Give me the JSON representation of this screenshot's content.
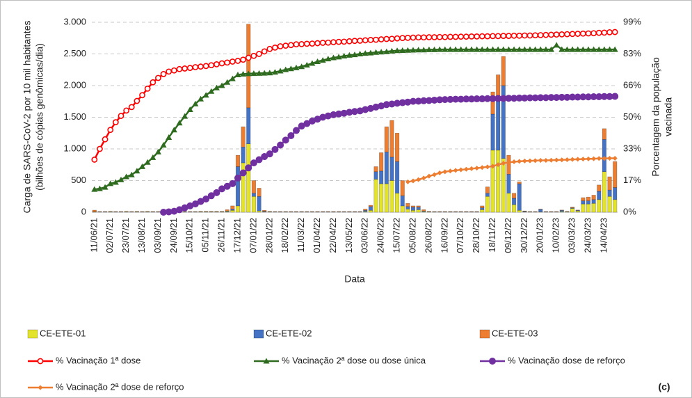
{
  "chart_data": {
    "type": "bar",
    "stacked": true,
    "grid": true,
    "legend": "bottom",
    "y_label": [
      "Carga de SARS-CoV-2 por 10 mil habitantes",
      "(bilhões de cópias genômicas/dia)"
    ],
    "y2_label": [
      "Porcentagem da população",
      "vacinada"
    ],
    "x_label": "Data",
    "annotation": "(c)",
    "ylim": [
      0,
      3000
    ],
    "yticks": [
      0,
      500,
      {
        "value": 1000,
        "label": "1.000"
      },
      {
        "value": 1500,
        "label": "1.500"
      },
      {
        "value": 2000,
        "label": "2.000"
      },
      {
        "value": 2500,
        "label": "2.500"
      },
      {
        "value": 3000,
        "label": "3.000"
      }
    ],
    "y2lim": [
      0,
      99
    ],
    "y2ticks": [
      {
        "value": 0,
        "label": "0%"
      },
      {
        "value": 16.5,
        "label": "17%"
      },
      {
        "value": 33,
        "label": "33%"
      },
      {
        "value": 49.5,
        "label": "50%"
      },
      {
        "value": 66,
        "label": "66%"
      },
      {
        "value": 82.5,
        "label": "83%"
      },
      {
        "value": 99,
        "label": "99%"
      }
    ],
    "categories": [
      "11/06/21",
      null,
      null,
      "02/07/21",
      null,
      null,
      "23/07/21",
      null,
      null,
      "13/08/21",
      null,
      null,
      "03/09/21",
      null,
      null,
      "24/09/21",
      null,
      null,
      "15/10/21",
      null,
      null,
      "05/11/21",
      null,
      null,
      "26/11/21",
      null,
      null,
      "17/12/21",
      null,
      null,
      "07/01/22",
      null,
      null,
      "28/01/22",
      null,
      null,
      "18/02/22",
      null,
      null,
      "11/03/22",
      null,
      null,
      "01/04/22",
      null,
      null,
      "22/04/22",
      null,
      null,
      "13/05/22",
      null,
      null,
      "03/06/22",
      null,
      null,
      "24/06/22",
      null,
      null,
      "15/07/22",
      null,
      null,
      "05/08/22",
      null,
      null,
      "26/08/22",
      null,
      null,
      "16/09/22",
      null,
      null,
      "07/10/22",
      null,
      null,
      "28/10/22",
      null,
      null,
      "18/11/22",
      null,
      null,
      "09/12/22",
      null,
      null,
      "30/12/22",
      null,
      null,
      "20/01/23",
      null,
      null,
      "10/02/23",
      null,
      null,
      "03/03/23",
      null,
      null,
      "24/03/23",
      null,
      null,
      "14/04/23",
      null,
      null
    ],
    "series": [
      {
        "name": "CE-ETE-01",
        "type": "bar",
        "color": "#e3e32b",
        "values": [
          5,
          3,
          3,
          5,
          3,
          3,
          5,
          3,
          5,
          3,
          5,
          3,
          3,
          3,
          3,
          3,
          3,
          3,
          3,
          3,
          5,
          5,
          5,
          5,
          5,
          10,
          30,
          100,
          780,
          1080,
          250,
          20,
          5,
          5,
          3,
          3,
          3,
          3,
          3,
          3,
          3,
          3,
          3,
          3,
          3,
          3,
          3,
          3,
          3,
          3,
          3,
          10,
          30,
          520,
          450,
          450,
          500,
          300,
          100,
          50,
          30,
          40,
          10,
          5,
          3,
          3,
          3,
          3,
          3,
          3,
          3,
          3,
          3,
          40,
          250,
          980,
          980,
          850,
          300,
          120,
          30,
          5,
          3,
          3,
          5,
          3,
          3,
          3,
          10,
          5,
          60,
          20,
          130,
          130,
          140,
          200,
          640,
          250,
          200
        ]
      },
      {
        "name": "CE-ETE-02",
        "type": "bar",
        "color": "#4472c4",
        "values": [
          3,
          3,
          3,
          3,
          3,
          3,
          3,
          3,
          3,
          3,
          3,
          3,
          3,
          3,
          3,
          3,
          3,
          3,
          3,
          3,
          3,
          3,
          3,
          3,
          3,
          10,
          20,
          620,
          250,
          570,
          50,
          230,
          10,
          3,
          3,
          3,
          3,
          3,
          3,
          3,
          3,
          3,
          3,
          3,
          3,
          3,
          3,
          3,
          3,
          3,
          3,
          20,
          60,
          120,
          200,
          500,
          370,
          500,
          160,
          40,
          50,
          40,
          10,
          3,
          3,
          3,
          3,
          3,
          3,
          3,
          3,
          3,
          3,
          30,
          50,
          570,
          780,
          1150,
          300,
          100,
          420,
          10,
          3,
          3,
          40,
          3,
          3,
          3,
          20,
          3,
          10,
          10,
          50,
          50,
          60,
          130,
          510,
          100,
          190
        ]
      },
      {
        "name": "CE-ETE-03",
        "type": "bar",
        "color": "#ed7d31",
        "values": [
          25,
          5,
          5,
          5,
          5,
          5,
          5,
          5,
          5,
          5,
          5,
          5,
          5,
          5,
          5,
          5,
          5,
          5,
          5,
          5,
          5,
          5,
          5,
          5,
          5,
          20,
          50,
          180,
          320,
          1320,
          200,
          130,
          15,
          5,
          5,
          5,
          5,
          5,
          5,
          5,
          5,
          5,
          5,
          5,
          5,
          5,
          5,
          5,
          5,
          5,
          5,
          20,
          20,
          80,
          290,
          400,
          580,
          450,
          240,
          50,
          20,
          20,
          20,
          5,
          5,
          5,
          5,
          5,
          5,
          5,
          5,
          5,
          5,
          30,
          100,
          350,
          410,
          460,
          300,
          80,
          30,
          5,
          5,
          5,
          5,
          5,
          5,
          5,
          5,
          5,
          10,
          5,
          50,
          60,
          70,
          100,
          170,
          210,
          410
        ]
      },
      {
        "name": "% Vacinação 1ª dose",
        "type": "line",
        "axis": "y2",
        "color": "#ff0000",
        "marker": "circle",
        "marker_fill": "#ffffff",
        "values": [
          27.4,
          33,
          38,
          42.9,
          46.9,
          50.2,
          53,
          54.8,
          58,
          61,
          64.4,
          67.7,
          70,
          72,
          73.3,
          73.9,
          74.6,
          74.9,
          75.2,
          75.6,
          75.9,
          76.2,
          76.6,
          77.1,
          77.6,
          78,
          78.5,
          78.9,
          79.5,
          80.5,
          81.5,
          82.5,
          83.8,
          85.1,
          85.8,
          86.5,
          86.8,
          87.1,
          87.5,
          87.6,
          87.8,
          87.9,
          88.1,
          88.3,
          88.4,
          88.6,
          88.8,
          88.9,
          89.1,
          89.3,
          89.4,
          89.6,
          89.8,
          89.9,
          90.1,
          90.3,
          90.4,
          90.6,
          90.8,
          90.9,
          91,
          91.1,
          91.1,
          91.2,
          91.2,
          91.3,
          91.3,
          91.4,
          91.4,
          91.5,
          91.5,
          91.6,
          91.6,
          91.7,
          91.7,
          91.8,
          91.8,
          91.9,
          91.9,
          92,
          92,
          92.1,
          92.1,
          92.2,
          92.3,
          92.4,
          92.5,
          92.6,
          92.7,
          92.8,
          92.9,
          93,
          93.1,
          93.2,
          93.3,
          93.5,
          93.6,
          93.8,
          93.9
        ]
      },
      {
        "name": "% Vacinação 2ª dose ou dose única",
        "type": "line",
        "axis": "y2",
        "color": "#2e6b1f",
        "marker": "triangle",
        "values": [
          11.9,
          12.3,
          13,
          14.9,
          15.6,
          16.9,
          18.5,
          19.5,
          21.5,
          23.8,
          26,
          28.5,
          31.4,
          35,
          39,
          42.9,
          46.5,
          50,
          53.5,
          56.5,
          59,
          61,
          63,
          64.8,
          66,
          67.7,
          69.6,
          71.6,
          72,
          72.2,
          72.3,
          72.4,
          72.5,
          72.6,
          73,
          73.6,
          74.3,
          74.8,
          75.3,
          75.9,
          76.7,
          77.6,
          78.5,
          79.2,
          79.9,
          80.5,
          80.9,
          81.4,
          81.8,
          82.1,
          82.5,
          82.8,
          83,
          83.3,
          83.5,
          83.7,
          84,
          84.2,
          84.3,
          84.4,
          84.5,
          84.6,
          84.6,
          84.7,
          84.7,
          84.8,
          84.8,
          84.8,
          84.8,
          84.8,
          84.8,
          84.8,
          84.8,
          84.8,
          84.8,
          84.8,
          84.8,
          84.8,
          84.8,
          84.8,
          84.8,
          84.8,
          84.8,
          84.8,
          84.8,
          84.8,
          84.8,
          87.1,
          84.8,
          84.8,
          84.8,
          84.8,
          84.8,
          84.8,
          84.8,
          84.8,
          84.8,
          84.8,
          84.8
        ]
      },
      {
        "name": "% Vacinação dose de reforço",
        "type": "line",
        "axis": "y2",
        "color": "#7030a0",
        "marker": "circle",
        "values": [
          null,
          null,
          null,
          null,
          null,
          null,
          null,
          null,
          null,
          null,
          null,
          null,
          null,
          0,
          0.2,
          0.5,
          1.3,
          2.3,
          3.3,
          4.3,
          5.6,
          6.9,
          8.6,
          10.2,
          12.2,
          13.5,
          14.9,
          17.8,
          20.5,
          23.1,
          25.7,
          27.4,
          29,
          30.4,
          32.7,
          35,
          37.6,
          39.9,
          42.6,
          44.9,
          46.2,
          47.5,
          48.5,
          49.5,
          50.2,
          50.8,
          51.2,
          51.6,
          52.1,
          52.5,
          52.8,
          53.5,
          54.1,
          54.8,
          55.4,
          56.1,
          56.4,
          56.8,
          57.1,
          57.4,
          57.8,
          57.9,
          58.1,
          58.2,
          58.4,
          58.6,
          58.7,
          58.8,
          58.9,
          58.9,
          59,
          59,
          59.1,
          59.1,
          59.2,
          59.2,
          59.3,
          59.3,
          59.4,
          59.4,
          59.5,
          59.5,
          59.6,
          59.6,
          59.7,
          59.7,
          59.8,
          59.8,
          59.9,
          59.9,
          60,
          60,
          60.1,
          60.1,
          60.2,
          60.2,
          60.3,
          60.3,
          60.4
        ]
      },
      {
        "name": "% Vacinação 2ª dose de reforço",
        "type": "line",
        "axis": "y2",
        "color": "#ed7d31",
        "marker": "diamond",
        "values": [
          null,
          null,
          null,
          null,
          null,
          null,
          null,
          null,
          null,
          null,
          null,
          null,
          null,
          null,
          null,
          null,
          null,
          null,
          null,
          null,
          null,
          null,
          null,
          null,
          null,
          null,
          null,
          null,
          null,
          null,
          null,
          null,
          null,
          null,
          null,
          null,
          null,
          null,
          null,
          null,
          null,
          null,
          null,
          null,
          null,
          null,
          null,
          null,
          null,
          null,
          null,
          null,
          null,
          null,
          null,
          null,
          null,
          null,
          null,
          15.8,
          16.3,
          17,
          17.8,
          18.8,
          19.6,
          20.5,
          21.1,
          21.5,
          21.8,
          22.1,
          22.4,
          22.7,
          23,
          23.3,
          23.6,
          24,
          24.8,
          25.5,
          26,
          26.3,
          26.5,
          26.7,
          26.8,
          26.9,
          27,
          27,
          27.1,
          27.2,
          27.3,
          27.4,
          27.5,
          27.6,
          27.7,
          27.8,
          27.9,
          28,
          28,
          28.1,
          28.1
        ]
      }
    ]
  }
}
